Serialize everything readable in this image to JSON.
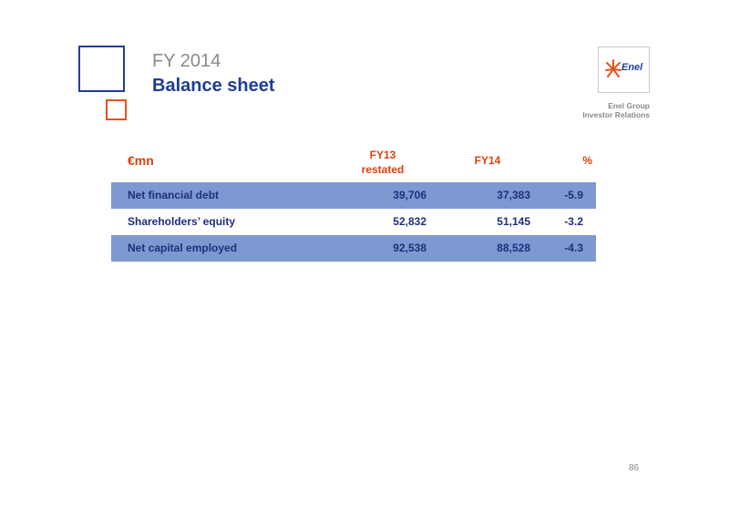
{
  "header": {
    "year": "FY 2014",
    "title": "Balance sheet"
  },
  "logo": {
    "text": "Enel",
    "group_line1": "Enel Group",
    "group_line2": "Investor Relations",
    "brand_colors": {
      "blue": "#1f3d99",
      "orange": "#e8531a"
    }
  },
  "table": {
    "unit": "€mn",
    "col_fy13_line1": "FY13",
    "col_fy13_line2": "restated",
    "col_fy14": "FY14",
    "col_pct": "%",
    "rows": [
      {
        "label": "Net financial debt",
        "fy13": "39,706",
        "fy14": "37,383",
        "pct": "-5.9"
      },
      {
        "label": "Shareholders’ equity",
        "fy13": "52,832",
        "fy14": "51,145",
        "pct": "-3.2"
      },
      {
        "label": "Net capital employed",
        "fy13": "92,538",
        "fy14": "88,528",
        "pct": "-4.3"
      }
    ],
    "colors": {
      "header": "#e0400e",
      "row_shade": "#7e99d2",
      "row_text": "#1f2f7a"
    }
  },
  "footer": {
    "page_number": "86"
  }
}
